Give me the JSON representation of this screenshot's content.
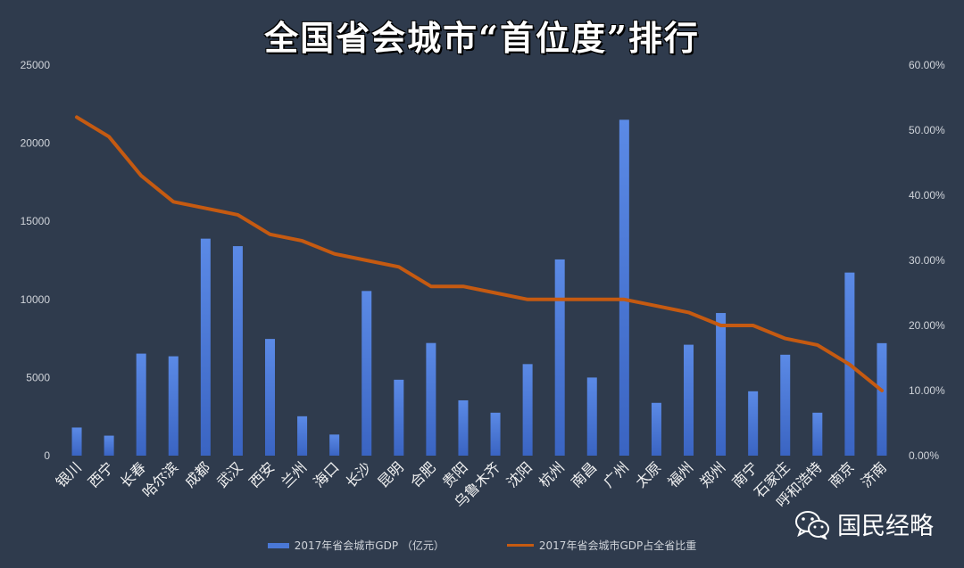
{
  "title": "全国省会城市“首位度”排行",
  "watermark": {
    "text": "国民经略",
    "icon": "wechat-icon"
  },
  "chart_data": {
    "type": "bar",
    "categories": [
      "银川",
      "西宁",
      "长春",
      "哈尔滨",
      "成都",
      "武汉",
      "西安",
      "兰州",
      "海口",
      "长沙",
      "昆明",
      "合肥",
      "贵阳",
      "乌鲁木齐",
      "沈阳",
      "杭州",
      "南昌",
      "广州",
      "太原",
      "福州",
      "郑州",
      "南宁",
      "石家庄",
      "呼和浩特",
      "南京",
      "济南"
    ],
    "series": [
      {
        "name": "2017年省会城市GDP （亿元）",
        "type": "bar",
        "axis": "left",
        "color": "#4a78d6",
        "values": [
          1800,
          1280,
          6530,
          6360,
          13890,
          13410,
          7470,
          2520,
          1350,
          10540,
          4860,
          7210,
          3540,
          2750,
          5860,
          12560,
          5000,
          21500,
          3380,
          7100,
          9130,
          4120,
          6460,
          2750,
          11720,
          7200
        ]
      },
      {
        "name": "2017年省会城市GDP占全省比重",
        "type": "line",
        "axis": "right",
        "color": "#c55a11",
        "values": [
          52.0,
          49.0,
          43.0,
          39.0,
          38.0,
          37.0,
          34.0,
          33.0,
          31.0,
          30.0,
          29.0,
          26.0,
          26.0,
          25.0,
          24.0,
          24.0,
          24.0,
          24.0,
          23.0,
          22.0,
          20.0,
          20.0,
          18.0,
          17.0,
          14.0,
          10.0
        ]
      }
    ],
    "y_left": {
      "min": 0,
      "max": 25000,
      "ticks": [
        "0",
        "5000",
        "10000",
        "15000",
        "20000",
        "25000"
      ]
    },
    "y_right": {
      "min": 0,
      "max": 60,
      "ticks": [
        "0.00%",
        "10.00%",
        "20.00%",
        "30.00%",
        "40.00%",
        "50.00%",
        "60.00%"
      ]
    },
    "grid": false,
    "legend_position": "bottom"
  }
}
